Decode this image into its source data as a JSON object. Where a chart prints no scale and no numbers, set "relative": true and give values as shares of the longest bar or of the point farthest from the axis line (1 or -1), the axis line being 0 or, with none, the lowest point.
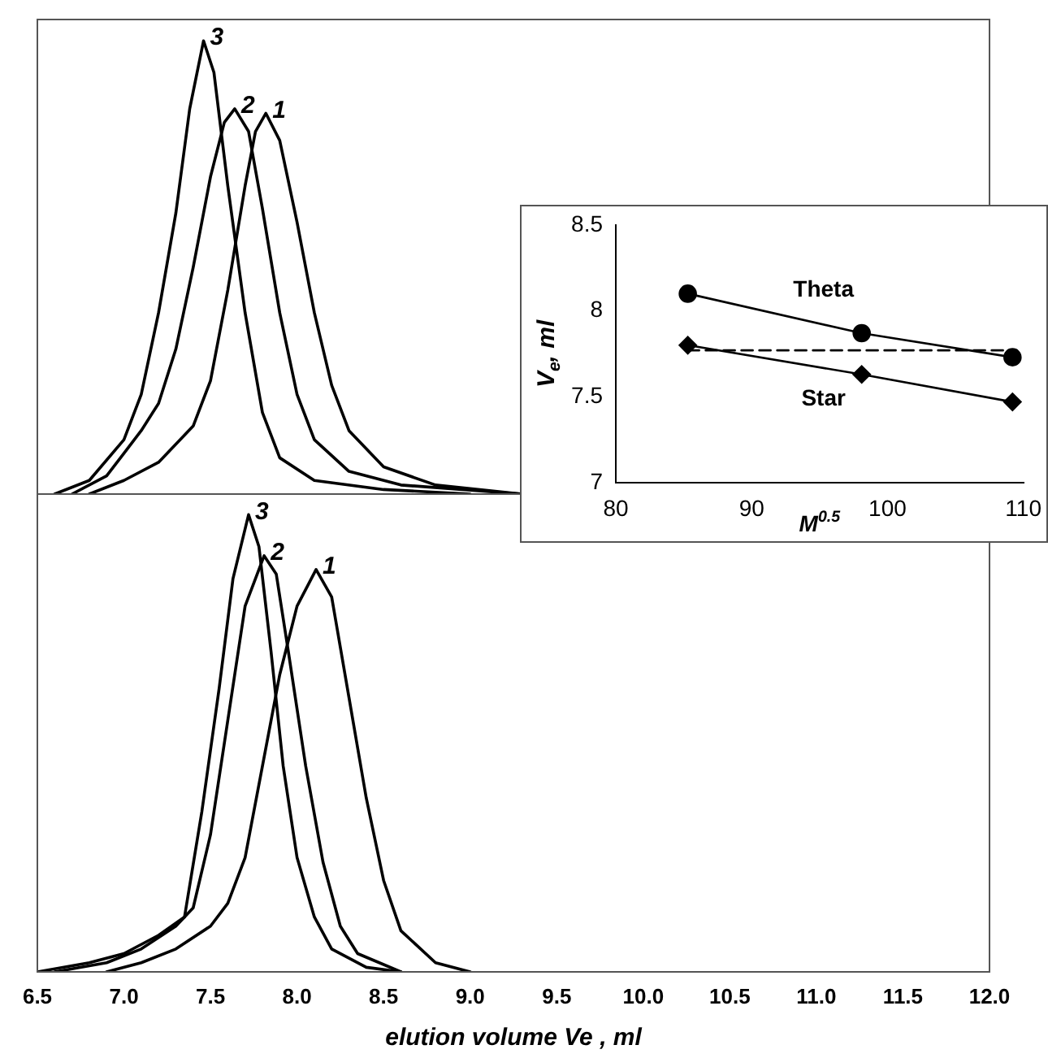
{
  "chart_data": [
    {
      "type": "line",
      "relative": true,
      "xlim": [
        6.5,
        12.0
      ],
      "tick_labels": false,
      "grid": false,
      "legend": false,
      "line_style": "solid",
      "series": [
        {
          "name": "3",
          "color": "#000000",
          "x": [
            6.6,
            6.8,
            7.0,
            7.1,
            7.2,
            7.3,
            7.38,
            7.46,
            7.52,
            7.6,
            7.7,
            7.8,
            7.9,
            8.1,
            8.5,
            9.0
          ],
          "values": [
            0,
            0.03,
            0.12,
            0.22,
            0.4,
            0.62,
            0.85,
            1.0,
            0.93,
            0.68,
            0.4,
            0.18,
            0.08,
            0.03,
            0.01,
            0
          ]
        },
        {
          "name": "2",
          "color": "#000000",
          "x": [
            6.7,
            6.9,
            7.0,
            7.1,
            7.2,
            7.3,
            7.4,
            7.5,
            7.58,
            7.64,
            7.72,
            7.8,
            7.9,
            8.0,
            8.1,
            8.3,
            8.6,
            9.3
          ],
          "values": [
            0,
            0.04,
            0.09,
            0.14,
            0.2,
            0.32,
            0.5,
            0.7,
            0.82,
            0.85,
            0.8,
            0.63,
            0.4,
            0.22,
            0.12,
            0.05,
            0.02,
            0
          ]
        },
        {
          "name": "1",
          "color": "#000000",
          "x": [
            6.8,
            7.0,
            7.2,
            7.4,
            7.5,
            7.6,
            7.7,
            7.76,
            7.82,
            7.9,
            8.0,
            8.1,
            8.2,
            8.3,
            8.5,
            8.8,
            9.3
          ],
          "values": [
            0,
            0.03,
            0.07,
            0.15,
            0.25,
            0.45,
            0.68,
            0.8,
            0.84,
            0.78,
            0.6,
            0.4,
            0.24,
            0.14,
            0.06,
            0.02,
            0
          ]
        }
      ]
    },
    {
      "type": "line",
      "relative": true,
      "xlim": [
        6.5,
        12.0
      ],
      "tick_labels": "x",
      "xlabel": "elution volume Ve , ml",
      "grid": false,
      "legend": false,
      "line_style": "solid",
      "xticks": [
        {
          "value": 6.5,
          "label": "6.5"
        },
        {
          "value": 7,
          "label": "7.0"
        },
        {
          "value": 7.5,
          "label": "7.5"
        },
        {
          "value": 8,
          "label": "8.0"
        },
        {
          "value": 8.5,
          "label": "8.5"
        },
        {
          "value": 9,
          "label": "9.0"
        },
        {
          "value": 9.5,
          "label": "9.5"
        },
        {
          "value": 10,
          "label": "10.0"
        },
        {
          "value": 10.5,
          "label": "10.5"
        },
        {
          "value": 11,
          "label": "11.0"
        },
        {
          "value": 11.5,
          "label": "11.5"
        },
        {
          "value": 12,
          "label": "12.0"
        }
      ],
      "series": [
        {
          "name": "3",
          "color": "#000000",
          "x": [
            6.5,
            6.8,
            7.0,
            7.2,
            7.35,
            7.45,
            7.55,
            7.63,
            7.72,
            7.78,
            7.85,
            7.92,
            8.0,
            8.1,
            8.2,
            8.4,
            8.6
          ],
          "values": [
            0,
            0.02,
            0.04,
            0.08,
            0.12,
            0.35,
            0.62,
            0.86,
            1.0,
            0.93,
            0.7,
            0.45,
            0.25,
            0.12,
            0.05,
            0.01,
            0
          ]
        },
        {
          "name": "2",
          "color": "#000000",
          "x": [
            6.6,
            6.9,
            7.1,
            7.3,
            7.4,
            7.5,
            7.6,
            7.7,
            7.81,
            7.88,
            7.95,
            8.05,
            8.15,
            8.25,
            8.35,
            8.6
          ],
          "values": [
            0,
            0.02,
            0.05,
            0.1,
            0.14,
            0.3,
            0.55,
            0.8,
            0.91,
            0.87,
            0.7,
            0.45,
            0.24,
            0.1,
            0.04,
            0
          ]
        },
        {
          "name": "1",
          "color": "#000000",
          "x": [
            6.9,
            7.1,
            7.3,
            7.5,
            7.6,
            7.7,
            7.8,
            7.9,
            8.0,
            8.11,
            8.2,
            8.3,
            8.4,
            8.5,
            8.6,
            8.8,
            9.0
          ],
          "values": [
            0,
            0.02,
            0.05,
            0.1,
            0.15,
            0.25,
            0.45,
            0.65,
            0.8,
            0.88,
            0.82,
            0.6,
            0.38,
            0.2,
            0.09,
            0.02,
            0
          ]
        }
      ]
    },
    {
      "type": "line",
      "xlabel": "M$^{0.5}$",
      "ylabel": "V$_{e}$, ml",
      "xlim": [
        80,
        110
      ],
      "xticks": [
        80,
        90,
        100,
        110
      ],
      "ylim": [
        7,
        8.5
      ],
      "yticks": [
        7,
        7.5,
        8,
        8.5
      ],
      "grid": false,
      "legend": false,
      "line_style": "solid",
      "series": [
        {
          "name": "Theta",
          "color": "#000000",
          "marker": "circle",
          "x": [
            85.3,
            98.1,
            109.2
          ],
          "values": [
            8.1,
            7.87,
            7.73
          ]
        },
        {
          "name": "Star",
          "color": "#000000",
          "marker": "diamond",
          "x": [
            85.3,
            98.1,
            109.2
          ],
          "values": [
            7.8,
            7.63,
            7.47
          ]
        },
        {
          "color": "#000000",
          "marker": "none",
          "line_style": "dashed",
          "x": [
            85.3,
            109.5
          ],
          "values": [
            7.77,
            7.77
          ]
        }
      ]
    }
  ]
}
